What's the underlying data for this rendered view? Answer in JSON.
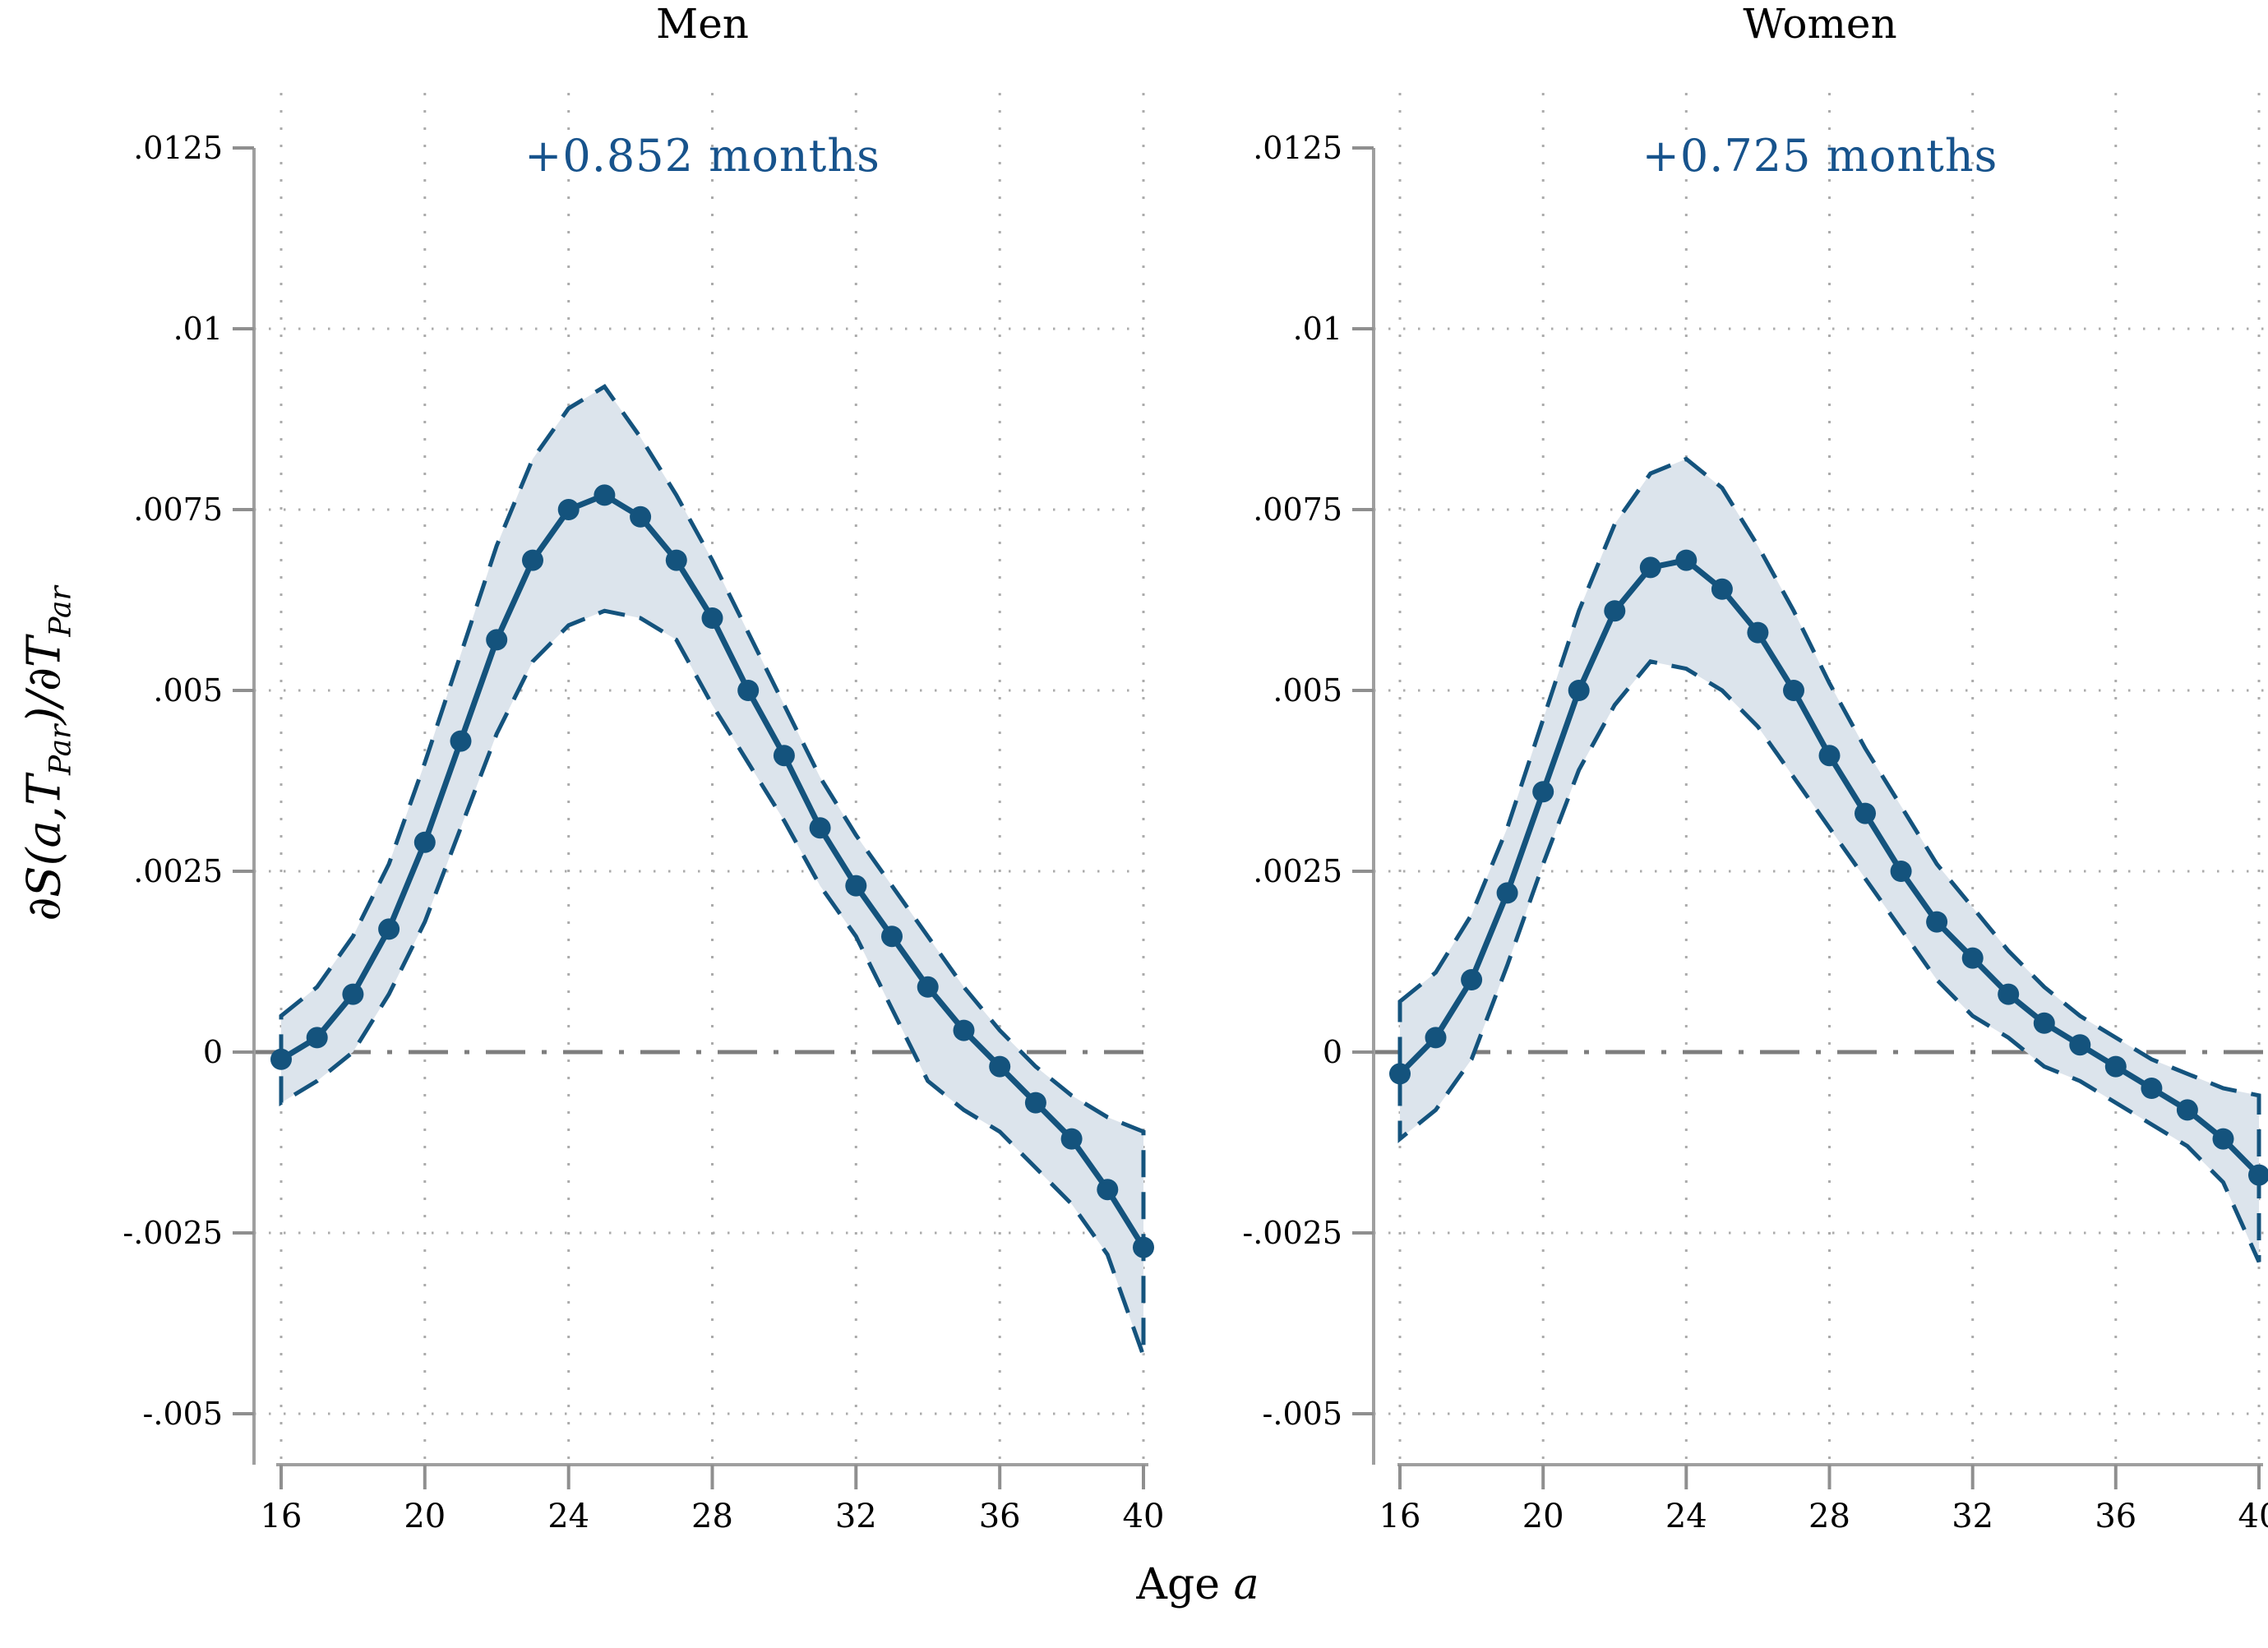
{
  "chart_data": {
    "type": "line",
    "title": "",
    "xlabel": "Age a",
    "xlabel_pre": "Age ",
    "xlabel_italic": "a",
    "ylabel": "∂S(a,T_Par)/∂T_Par",
    "ylabel_parts": {
      "p1": "∂S(a,T",
      "s1": "Par",
      "p2": ")/∂T",
      "s2": "Par"
    },
    "x_ticks": [
      16,
      20,
      24,
      28,
      32,
      36,
      40
    ],
    "x_tick_labels": [
      "16",
      "20",
      "24",
      "28",
      "32",
      "36",
      "40"
    ],
    "y_tick_values": [
      0.0125,
      0.01,
      0.0075,
      0.005,
      0.0025,
      0,
      -0.0025,
      -0.005
    ],
    "y_tick_labels": [
      ".0125",
      ".01",
      ".0075",
      ".005",
      ".0025",
      "0",
      "-.0025",
      "-.005"
    ],
    "y_grid_values": [
      0.01,
      0.0075,
      0.005,
      0.0025,
      -0.0025,
      -0.005
    ],
    "ylim": [
      -0.0057,
      0.0133
    ],
    "xlim": [
      16,
      40
    ],
    "grid": true,
    "zero_line": 0,
    "x": [
      16,
      17,
      18,
      19,
      20,
      21,
      22,
      23,
      24,
      25,
      26,
      27,
      28,
      29,
      30,
      31,
      32,
      33,
      34,
      35,
      36,
      37,
      38,
      39,
      40
    ],
    "panels": [
      {
        "title": "Men",
        "annotation": "+0.852 months",
        "series": {
          "name": "marginal-effect-men",
          "values": [
            -0.0001,
            0.0002,
            0.0008,
            0.0017,
            0.0029,
            0.0043,
            0.0057,
            0.0068,
            0.0075,
            0.0077,
            0.0074,
            0.0068,
            0.006,
            0.005,
            0.0041,
            0.0031,
            0.0023,
            0.0016,
            0.0009,
            0.0003,
            -0.0002,
            -0.0007,
            -0.0012,
            -0.0019,
            -0.0027
          ]
        },
        "ci_upper": [
          0.0005,
          0.0009,
          0.0016,
          0.0026,
          0.004,
          0.0055,
          0.007,
          0.0082,
          0.0089,
          0.0092,
          0.0085,
          0.0077,
          0.0068,
          0.0058,
          0.0048,
          0.0038,
          0.003,
          0.0023,
          0.0016,
          0.0009,
          0.0003,
          -0.0002,
          -0.0006,
          -0.0009,
          -0.0011
        ],
        "ci_lower": [
          -0.0007,
          -0.0004,
          0.0,
          0.0008,
          0.0018,
          0.0031,
          0.0044,
          0.0054,
          0.0059,
          0.0061,
          0.006,
          0.0057,
          0.0048,
          0.004,
          0.0032,
          0.0023,
          0.0016,
          0.0006,
          -0.0004,
          -0.0008,
          -0.0011,
          -0.0016,
          -0.0021,
          -0.0028,
          -0.0042
        ]
      },
      {
        "title": "Women",
        "annotation": "+0.725 months",
        "series": {
          "name": "marginal-effect-women",
          "values": [
            -0.0003,
            0.0002,
            0.001,
            0.0022,
            0.0036,
            0.005,
            0.0061,
            0.0067,
            0.0068,
            0.0064,
            0.0058,
            0.005,
            0.0041,
            0.0033,
            0.0025,
            0.0018,
            0.0013,
            0.0008,
            0.0004,
            0.0001,
            -0.0002,
            -0.0005,
            -0.0008,
            -0.0012,
            -0.0017
          ]
        },
        "ci_upper": [
          0.0007,
          0.0011,
          0.0019,
          0.0031,
          0.0046,
          0.0061,
          0.0073,
          0.008,
          0.0082,
          0.0078,
          0.007,
          0.0061,
          0.0051,
          0.0042,
          0.0034,
          0.0026,
          0.002,
          0.0014,
          0.0009,
          0.0005,
          0.0002,
          -0.0001,
          -0.0003,
          -0.0005,
          -0.0006
        ],
        "ci_lower": [
          -0.0012,
          -0.0008,
          -0.0001,
          0.0012,
          0.0026,
          0.0039,
          0.0048,
          0.0054,
          0.0053,
          0.005,
          0.0045,
          0.0038,
          0.0031,
          0.0024,
          0.0017,
          0.001,
          0.0005,
          0.0002,
          -0.0002,
          -0.0004,
          -0.0007,
          -0.001,
          -0.0013,
          -0.0018,
          -0.0029
        ]
      }
    ],
    "legend": [],
    "colors": {
      "line": "#14537d",
      "marker": "#14537d",
      "ci_edge": "#14537d",
      "band": "#dce4ec",
      "zero_line": "#7d7d7d",
      "axis": "#9f9f9f",
      "tick": "#8f8f8f",
      "grid": "#ababab",
      "annotation": "#17538c",
      "text": "#000000"
    }
  }
}
